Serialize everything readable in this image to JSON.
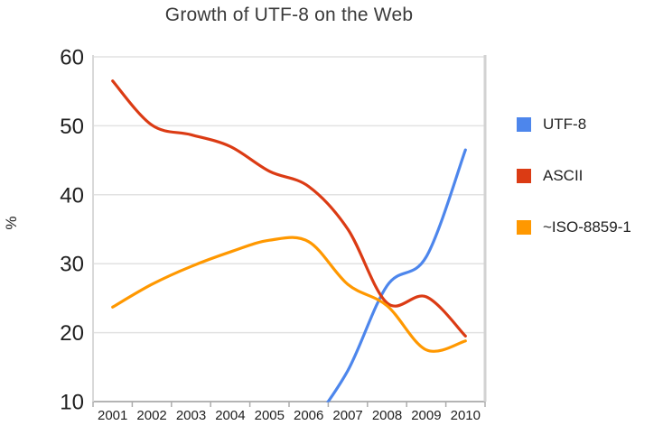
{
  "chart_data": {
    "type": "line",
    "title": "Growth of UTF-8 on the Web",
    "xlabel": "",
    "ylabel": "%",
    "x": [
      "2001",
      "2002",
      "2003",
      "2004",
      "2005",
      "2006",
      "2007",
      "2008",
      "2009",
      "2010"
    ],
    "ylim": [
      10,
      60
    ],
    "yticks": [
      60,
      50,
      40,
      30,
      20,
      10
    ],
    "grid": true,
    "smooth": true,
    "clip_below_ymin": true,
    "legend_position": "right",
    "series": [
      {
        "name": "UTF-8",
        "color": "#4D86EC",
        "values": [
          null,
          null,
          null,
          null,
          null,
          6,
          14.5,
          26.8,
          31,
          46.5
        ]
      },
      {
        "name": "ASCII",
        "color": "#DB3B14",
        "values": [
          56.5,
          50.1,
          48.7,
          47,
          43.4,
          41.2,
          35,
          24.3,
          25.2,
          19.5
        ]
      },
      {
        "name": "~ISO-8859-1",
        "color": "#FF9800",
        "values": [
          23.7,
          27,
          29.6,
          31.7,
          33.4,
          33.2,
          27,
          23.9,
          17.5,
          18.8
        ]
      }
    ],
    "style": {
      "grid_color": "#E2E2E2",
      "axis_line_color": "#A9A9A9",
      "plot_left_border_color": "#D9D9D9",
      "plot_right_border_color": "#D2D2D2",
      "tick_color": "#ADADAD",
      "axis_text_color": "#1f1f1f"
    }
  }
}
